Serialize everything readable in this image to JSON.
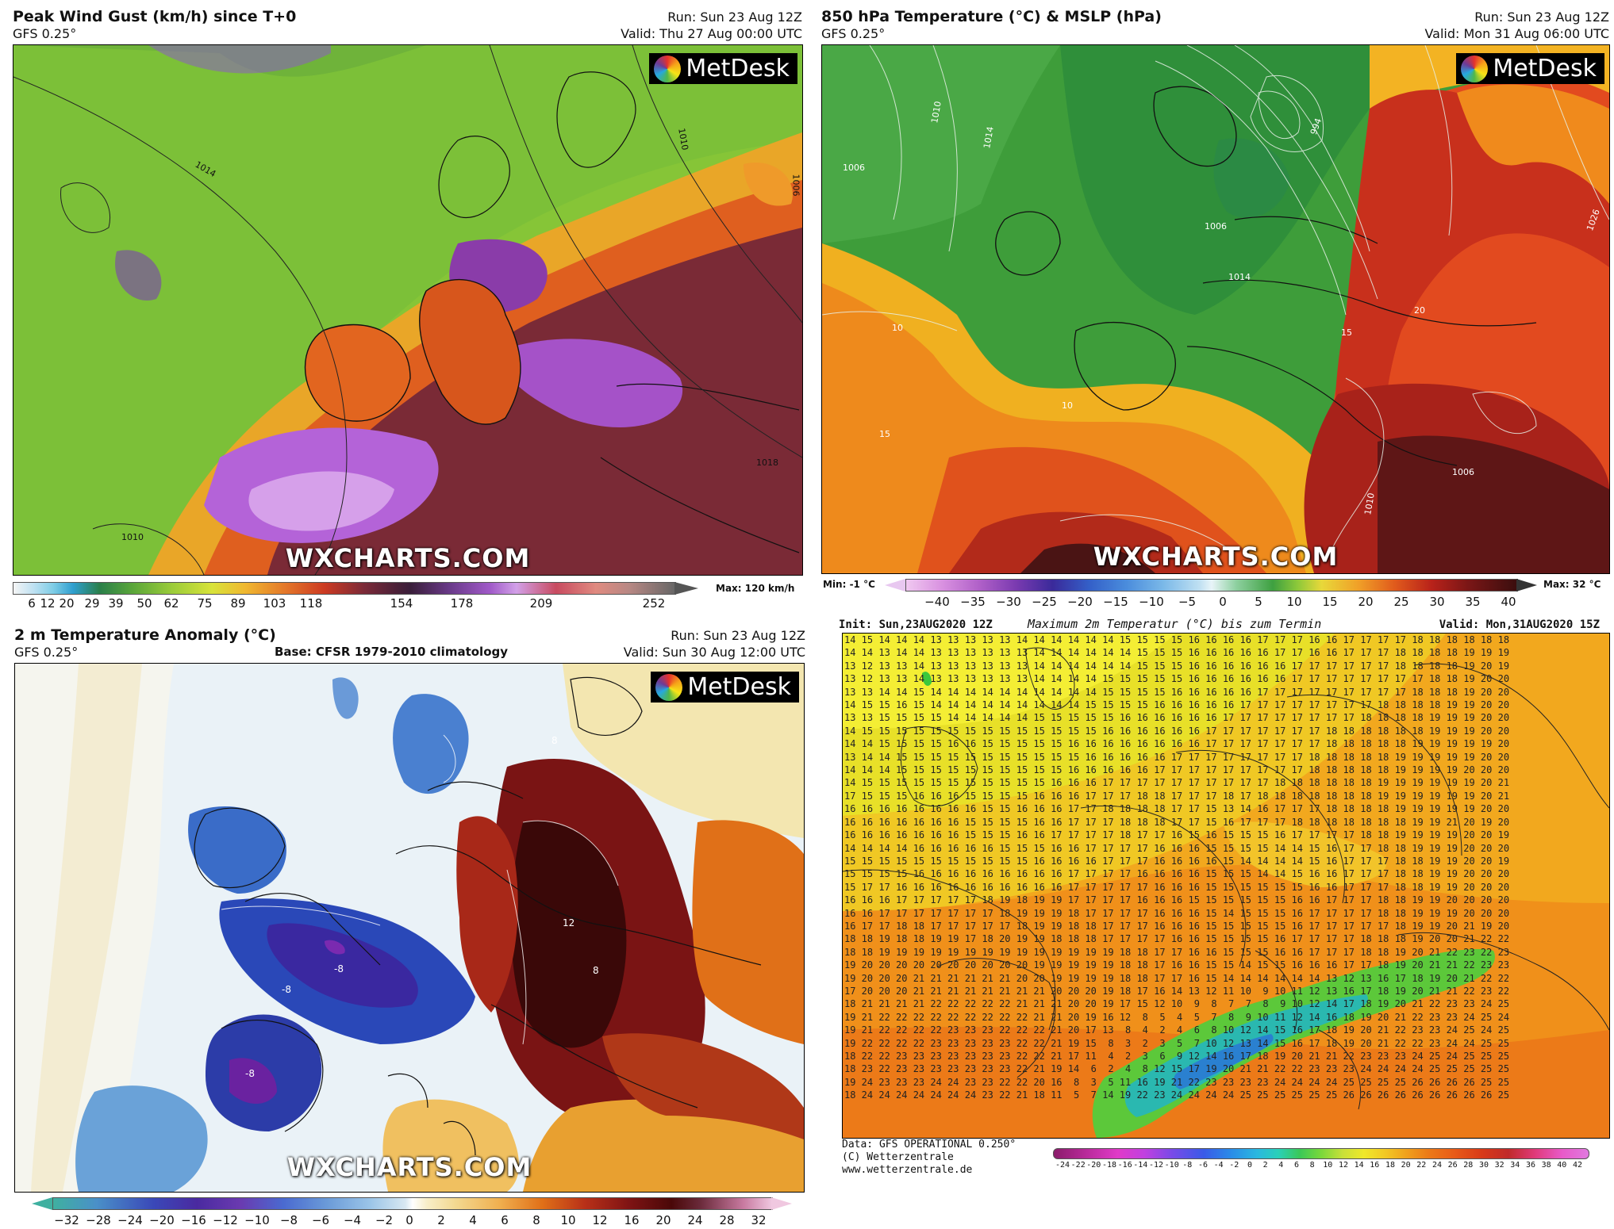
{
  "panel_tl": {
    "title": "Peak Wind Gust (km/h) since T+0",
    "model": "GFS 0.25°",
    "run": "Run: Sun 23 Aug 12Z",
    "valid": "Valid: Thu 27 Aug 00:00 UTC",
    "brand": "MetDesk",
    "watermark": "WXCHARTS.COM",
    "max": "Max: 120 km/h",
    "ticks": [
      "6",
      "12",
      "20",
      "29",
      "39",
      "50",
      "62",
      "75",
      "89",
      "103",
      "118",
      "154",
      "178",
      "209",
      "252"
    ],
    "contours": [
      "1014",
      "1010",
      "1018",
      "1010",
      "1006"
    ]
  },
  "panel_tr": {
    "title": "850 hPa Temperature (°C) & MSLP (hPa)",
    "model": "GFS 0.25°",
    "run": "Run: Sun 23 Aug 12Z",
    "valid": "Valid: Mon 31 Aug 06:00 UTC",
    "brand": "MetDesk",
    "watermark": "WXCHARTS.COM",
    "min": "Min: -1 °C",
    "max": "Max: 32 °C",
    "ticks": [
      "−40",
      "−35",
      "−30",
      "−25",
      "−20",
      "−15",
      "−10",
      "−5",
      "0",
      "5",
      "10",
      "15",
      "20",
      "25",
      "30",
      "35",
      "40"
    ],
    "contours": [
      "1010",
      "1014",
      "1006",
      "994",
      "1006",
      "1014",
      "10",
      "10",
      "15",
      "15",
      "20",
      "1006",
      "1010",
      "1026"
    ]
  },
  "panel_bl": {
    "title": "2 m Temperature Anomaly (°C)",
    "model": "GFS 0.25°",
    "run": "Run: Sun 23 Aug 12Z",
    "base": "Base: CFSR 1979-2010 climatology",
    "valid": "Valid: Sun 30 Aug 12:00 UTC",
    "brand": "MetDesk",
    "watermark": "WXCHARTS.COM",
    "ticks": [
      "−32",
      "−28",
      "−24",
      "−20",
      "−16",
      "−12",
      "−10",
      "−8",
      "−6",
      "−4",
      "−2",
      "0",
      "2",
      "4",
      "6",
      "8",
      "10",
      "12",
      "16",
      "20",
      "24",
      "28",
      "32"
    ],
    "contours": [
      "-8",
      "-8",
      "-8",
      "12",
      "8",
      "8"
    ]
  },
  "panel_br": {
    "init": "Init: Sun,23AUG2020 12Z",
    "title": "Maximum 2m Temperatur (°C) bis zum Termin",
    "valid": "Valid: Mon,31AUG2020 15Z",
    "data_line": "Data: GFS OPERATIONAL 0.250°",
    "copyright": "(C) Wetterzentrale",
    "url": "www.wetterzentrale.de",
    "ticks": [
      "-24",
      "-22",
      "-20",
      "-18",
      "-16",
      "-14",
      "-12",
      "-10",
      "-8",
      "-6",
      "-4",
      "-2",
      "0",
      "2",
      "4",
      "6",
      "8",
      "10",
      "12",
      "14",
      "16",
      "18",
      "20",
      "22",
      "24",
      "26",
      "28",
      "30",
      "32",
      "34",
      "36",
      "38",
      "40",
      "42"
    ],
    "grid_rows": [
      "14 15 14 14 14 13 13 13 13 13 14 14 14 14 14 14 15 15 15 15 16 16 16 16 17 17 17 16 16 17 17 17 17 18 18 18 18 18 18",
      "14 14 13 14 14 13 13 13 13 13 13 14 14 14 14 14 14 15 15 15 16 16 16 16 16 17 17 16 16 17 17 17 18 18 18 18 19 19 19",
      "13 12 13 13 14 13 13 13 13 13 13 14 14 14 14 14 14 15 15 15 16 16 16 16 16 16 17 17 17 17 17 17 18 18 18 18 19 20 19",
      "13 12 13 13 14 13 13 13 13 13 13 14 14 14 14 15 15 15 15 15 16 16 16 16 16 16 17 17 17 17 17 17 17 17 18 18 19 20 20",
      "13 13 14 14 15 14 14 14 14 14 14 14 14 14 14 15 15 15 15 16 16 16 16 16 17 17 17 17 17 17 17 17 17 18 18 18 19 20 20",
      "14 15 15 16 15 14 14 14 14 14 14 14 14 14 15 15 15 15 16 16 16 16 16 17 17 17 17 17 17 17 17 18 18 18 18 19 19 20 20",
      "13 13 15 15 15 15 14 14 14 14 14 15 15 15 15 15 16 16 16 16 16 16 17 17 17 17 17 17 17 17 18 18 18 18 19 19 19 20 20",
      "14 15 15 15 15 15 15 15 15 15 15 15 15 15 15 16 16 16 16 16 16 17 17 17 17 17 17 17 18 18 18 18 18 18 19 19 19 20 20",
      "14 14 15 15 15 15 16 16 15 15 15 15 15 16 16 16 16 16 16 16 16 17 17 17 17 17 17 17 18 18 18 18 18 19 19 19 19 19 20",
      "13 14 14 15 15 15 15 15 15 15 15 15 15 15 16 16 16 16 16 17 17 17 17 17 17 17 17 18 18 18 18 18 19 19 19 19 19 20 20",
      "14 14 14 15 15 15 15 15 15 15 15 15 15 16 16 16 16 16 17 17 17 17 17 17 17 17 17 18 18 18 18 18 19 19 19 19 20 20 20",
      "14 15 15 15 15 15 15 15 15 15 15 15 16 16 16 17 17 17 17 17 17 17 17 17 17 18 18 18 18 18 18 19 19 19 19 19 19 20 21",
      "17 15 15 15 16 16 16 15 15 15 15 16 16 16 17 17 17 18 18 17 17 17 18 17 18 18 18 18 18 18 18 19 19 19 19 19 19 20 21",
      "16 16 16 16 16 16 16 16 15 15 16 16 16 17 17 18 18 18 18 17 17 15 13 14 16 17 17 17 18 18 18 18 19 19 19 19 19 20 20",
      "16 16 16 16 16 16 16 15 15 15 15 16 16 17 17 17 18 18 18 17 17 15 16 17 17 17 18 18 18 18 18 18 18 19 19 21 20 19 20",
      "16 16 16 16 16 16 16 15 15 15 16 16 17 17 17 17 18 17 17 16 15 16 15 15 15 16 17 17 17 17 18 18 19 19 19 19 20 20 19",
      "14 14 14 14 16 16 16 16 16 15 15 15 16 16 17 17 17 17 16 16 16 15 15 15 15 14 14 15 16 17 17 18 18 19 19 19 20 20 20",
      "15 15 15 15 15 15 15 15 15 15 15 16 16 16 16 17 17 17 16 16 16 16 15 14 14 14 14 15 16 17 17 17 18 18 19 19 20 20 19",
      "15 15 15 15 16 16 16 16 16 16 16 16 16 17 17 17 17 16 16 16 16 15 15 15 14 14 15 16 16 17 17 17 18 18 19 19 20 20 20",
      "15 17 17 16 16 16 16 16 16 16 16 16 16 17 17 17 17 17 16 16 16 15 15 15 15 15 15 16 16 17 17 17 18 18 19 19 20 20 20",
      "16 16 16 17 17 17 17 17 18 19 18 19 19 17 17 17 17 16 16 16 15 15 15 15 15 15 16 16 17 17 17 18 18 19 19 20 20 20 20",
      "16 16 17 17 17 17 17 17 17 18 19 19 19 18 17 17 17 17 16 16 16 15 14 15 15 15 16 17 17 17 17 18 18 19 19 19 20 20 20",
      "16 17 17 18 18 17 17 17 17 17 18 19 19 18 18 17 17 17 16 16 16 15 15 15 15 15 16 17 17 17 17 17 18 19 19 20 21 19 20",
      "18 18 19 18 18 19 19 17 18 20 19 19 18 18 18 17 17 17 17 16 16 15 15 15 15 16 17 17 17 17 18 18 18 19 20 20 21 22 22",
      "18 18 19 19 19 19 19 19 19 19 19 19 19 19 19 19 18 18 17 17 16 16 15 15 15 16 16 17 17 17 18 18 19 20 21 22 23 22 23",
      "19 20 20 20 20 20 20 20 20 20 20 19 19 19 19 19 18 18 17 16 16 15 15 14 15 15 16 16 16 17 17 18 19 20 21 21 22 23 23",
      "19 20 20 20 21 21 21 21 21 21 20 20 19 19 19 19 18 18 17 17 16 15 14 14 14 14 14 14 13 12 13 16 17 18 19 20 21 22 22",
      "17 20 20 20 21 21 21 21 21 21 21 21 20 20 20 19 18 17 16 14 13 12 11 10  9 10 11 12 13 16 17 18 19 20 21 21 22 23 22",
      "18 21 21 21 21 22 22 22 22 22 21 21 21 20 20 19 17 15 12 10  9  8  7  7  8  9 10 12 14 17 18 19 20 21 22 23 23 24 25",
      "19 21 22 22 22 22 22 22 22 22 22 21 21 20 19 16 12  8  5  4  5  7  8  9 10 11 12 14 16 18 19 20 21 22 23 23 24 25 24",
      "19 21 22 22 22 22 23 23 23 22 22 22 21 20 17 13  8  4  2  4  6  8 10 12 14 15 16 17 18 19 20 21 22 23 23 24 25 24 25",
      "19 22 22 22 22 23 23 23 23 23 22 22 21 19 15  8  3  2  3  5  7 10 12 13 14 15 16 17 18 19 20 21 22 22 23 24 24 25 25",
      "18 22 22 23 23 23 23 23 23 23 22 22 21 17 11  4  2  3  6  9 12 14 16 17 18 19 20 21 21 22 23 23 23 24 25 24 25 25 25",
      "18 23 22 23 23 23 23 23 23 23 22 21 19 14  6  2  4  8 12 15 17 19 20 21 21 22 22 23 23 23 24 24 24 24 25 25 25 25 25",
      "19 24 23 23 23 24 24 23 23 22 22 20 16  8  3  5 11 16 19 21 22 23 23 23 23 24 24 24 24 25 25 25 25 26 26 26 26 25 25",
      "18 24 24 24 24 24 24 24 23 22 21 18 11  5  7 14 19 22 23 24 24 24 24 25 25 25 25 25 25 26 26 26 26 26 26 26 26 26 25"
    ]
  }
}
